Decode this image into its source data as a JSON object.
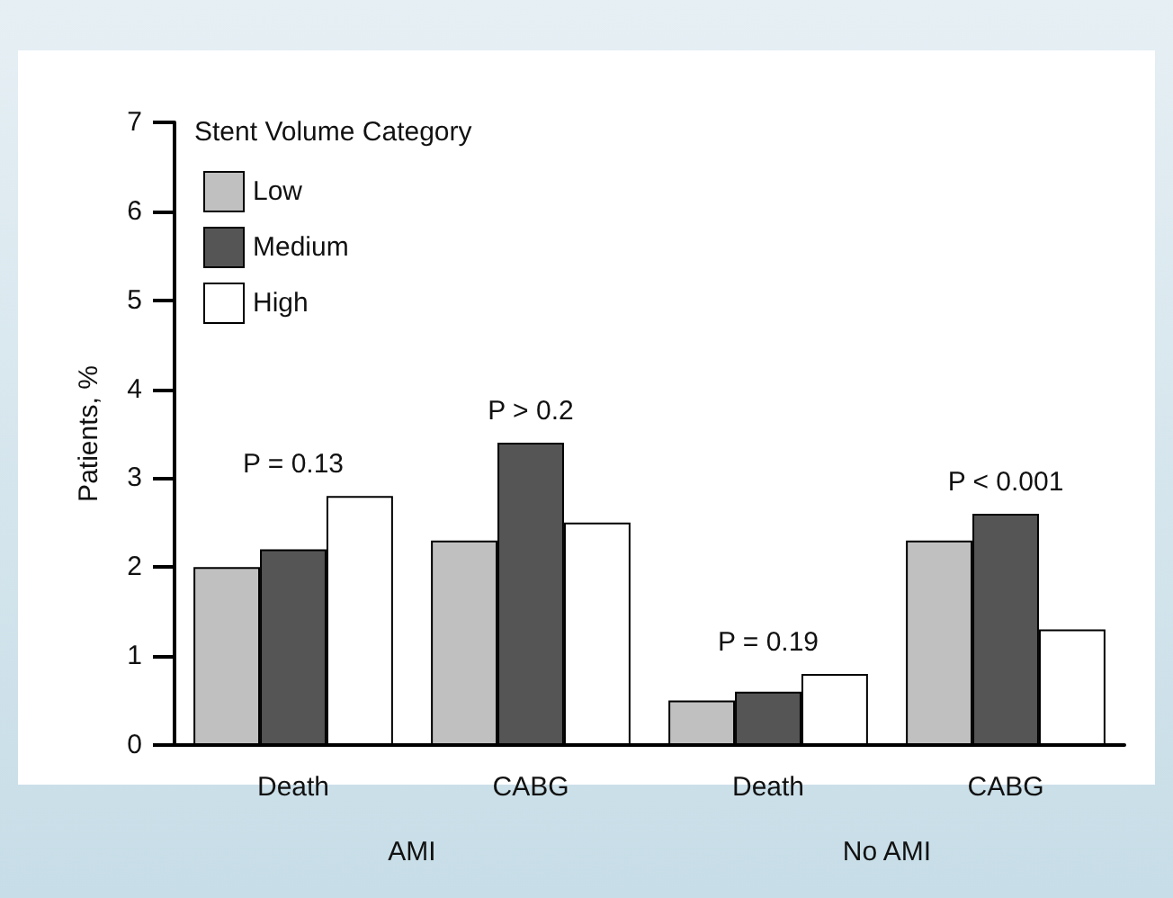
{
  "chart_data": {
    "type": "bar",
    "ylabel": "Patients, %",
    "legend_title": "Stent Volume Category",
    "categories": [
      "Death",
      "CABG",
      "Death",
      "CABG"
    ],
    "series": [
      {
        "name": "Low",
        "color": "#c0c0c0",
        "values": [
          2.0,
          2.3,
          0.5,
          2.3
        ]
      },
      {
        "name": "Medium",
        "color": "#555555",
        "values": [
          2.2,
          3.4,
          0.6,
          2.6
        ]
      },
      {
        "name": "High",
        "color": "#ffffff",
        "values": [
          2.8,
          2.5,
          0.8,
          1.3
        ]
      }
    ],
    "ylim": [
      0,
      7
    ],
    "yticks": [
      0,
      1,
      2,
      3,
      4,
      5,
      6,
      7
    ],
    "grid": false,
    "legend": "top left",
    "annotations": [
      "P = 0.13",
      "P > 0.2",
      "P = 0.19",
      "P < 0.001",
      "AMI",
      "No AMI"
    ]
  }
}
